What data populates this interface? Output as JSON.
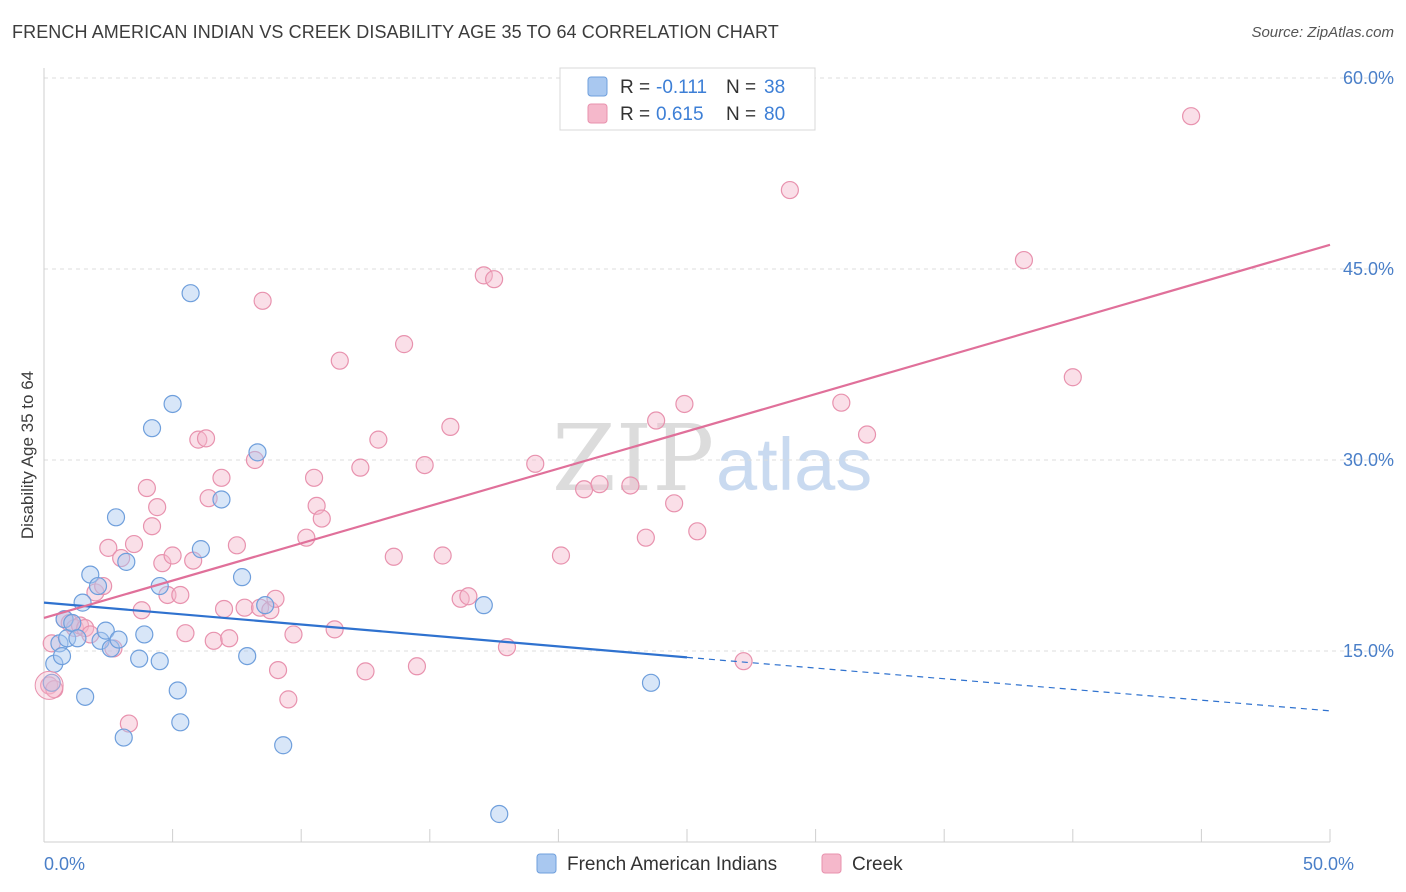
{
  "title": "FRENCH AMERICAN INDIAN VS CREEK DISABILITY AGE 35 TO 64 CORRELATION CHART",
  "source": "Source: ZipAtlas.com",
  "watermark": {
    "zip": "ZIP",
    "atlas": "atlas"
  },
  "colors": {
    "blue_fill": "#a9c8f0",
    "blue_stroke": "#6f9fdc",
    "blue_line": "#2f72cf",
    "pink_fill": "#f5b8cb",
    "pink_stroke": "#e892ae",
    "pink_line": "#e0709a",
    "tick": "#4a7fc8",
    "grid": "#dddddd"
  },
  "legend_top": {
    "rows": [
      {
        "r_label": "R =",
        "r_value": "-0.111",
        "n_label": "N =",
        "n_value": "38"
      },
      {
        "r_label": "R =",
        "r_value": "0.615",
        "n_label": "N =",
        "n_value": "80"
      }
    ]
  },
  "legend_bottom": [
    "French American Indians",
    "Creek"
  ],
  "chart_data": {
    "type": "scatter",
    "xlabel": "",
    "ylabel": "Disability Age 35 to 64",
    "xlim": [
      0,
      50
    ],
    "ylim": [
      0,
      60
    ],
    "x_tick_labels": [
      {
        "value": 0,
        "label": "0.0%"
      },
      {
        "value": 50,
        "label": "50.0%"
      }
    ],
    "y_tick_labels": [
      {
        "value": 15,
        "label": "15.0%"
      },
      {
        "value": 30,
        "label": "30.0%"
      },
      {
        "value": 45,
        "label": "45.0%"
      },
      {
        "value": 60,
        "label": "60.0%"
      }
    ],
    "series": [
      {
        "name": "French American Indians",
        "r": -0.111,
        "n": 38,
        "trend": {
          "x0": 0,
          "y0": 18.8,
          "x1": 25,
          "y1": 14.5,
          "dash_to_x": 50,
          "dash_to_y": 10.3
        },
        "points": [
          [
            0.3,
            12.5
          ],
          [
            0.4,
            14.0
          ],
          [
            0.6,
            15.6
          ],
          [
            0.7,
            14.6
          ],
          [
            0.8,
            17.5
          ],
          [
            0.9,
            16.0
          ],
          [
            1.1,
            17.2
          ],
          [
            1.3,
            16.0
          ],
          [
            1.5,
            18.8
          ],
          [
            1.6,
            11.4
          ],
          [
            1.8,
            21.0
          ],
          [
            2.1,
            20.1
          ],
          [
            2.2,
            15.8
          ],
          [
            2.4,
            16.6
          ],
          [
            2.6,
            15.2
          ],
          [
            2.8,
            25.5
          ],
          [
            2.9,
            15.9
          ],
          [
            3.1,
            8.2
          ],
          [
            3.2,
            22.0
          ],
          [
            3.7,
            14.4
          ],
          [
            3.9,
            16.3
          ],
          [
            4.2,
            32.5
          ],
          [
            4.5,
            14.2
          ],
          [
            4.5,
            20.1
          ],
          [
            5.0,
            34.4
          ],
          [
            5.2,
            11.9
          ],
          [
            5.3,
            9.4
          ],
          [
            5.7,
            43.1
          ],
          [
            6.1,
            23.0
          ],
          [
            6.9,
            26.9
          ],
          [
            7.7,
            20.8
          ],
          [
            7.9,
            14.6
          ],
          [
            8.3,
            30.6
          ],
          [
            8.6,
            18.6
          ],
          [
            9.3,
            7.6
          ],
          [
            17.1,
            18.6
          ],
          [
            17.7,
            2.2
          ],
          [
            23.6,
            12.5
          ]
        ]
      },
      {
        "name": "Creek",
        "r": 0.615,
        "n": 80,
        "trend": {
          "x0": 0,
          "y0": 17.6,
          "x1": 50,
          "y1": 46.9
        },
        "points": [
          [
            0.2,
            12.3
          ],
          [
            0.3,
            15.6
          ],
          [
            0.4,
            12.0
          ],
          [
            0.8,
            17.5
          ],
          [
            1.0,
            17.2
          ],
          [
            1.2,
            16.8
          ],
          [
            1.4,
            17.0
          ],
          [
            1.6,
            16.8
          ],
          [
            1.8,
            16.3
          ],
          [
            2.0,
            19.6
          ],
          [
            2.3,
            20.1
          ],
          [
            2.5,
            23.1
          ],
          [
            2.7,
            15.2
          ],
          [
            3.0,
            22.3
          ],
          [
            3.3,
            9.3
          ],
          [
            3.5,
            23.4
          ],
          [
            3.8,
            18.2
          ],
          [
            4.0,
            27.8
          ],
          [
            4.2,
            24.8
          ],
          [
            4.4,
            26.3
          ],
          [
            4.6,
            21.9
          ],
          [
            4.8,
            19.4
          ],
          [
            5.0,
            22.5
          ],
          [
            5.3,
            19.4
          ],
          [
            5.5,
            16.4
          ],
          [
            5.8,
            22.1
          ],
          [
            6.0,
            31.6
          ],
          [
            6.3,
            31.7
          ],
          [
            6.4,
            27.0
          ],
          [
            6.6,
            15.8
          ],
          [
            6.9,
            28.6
          ],
          [
            7.0,
            18.3
          ],
          [
            7.2,
            16.0
          ],
          [
            7.5,
            23.3
          ],
          [
            7.8,
            18.4
          ],
          [
            8.2,
            30.0
          ],
          [
            8.4,
            18.4
          ],
          [
            8.5,
            42.5
          ],
          [
            8.8,
            18.2
          ],
          [
            9.0,
            19.1
          ],
          [
            9.1,
            13.5
          ],
          [
            9.5,
            11.2
          ],
          [
            9.7,
            16.3
          ],
          [
            10.2,
            23.9
          ],
          [
            10.5,
            28.6
          ],
          [
            10.6,
            26.4
          ],
          [
            10.8,
            25.4
          ],
          [
            11.3,
            16.7
          ],
          [
            11.5,
            37.8
          ],
          [
            12.3,
            29.4
          ],
          [
            12.5,
            13.4
          ],
          [
            13.0,
            31.6
          ],
          [
            13.6,
            22.4
          ],
          [
            14.0,
            39.1
          ],
          [
            14.5,
            13.8
          ],
          [
            14.8,
            29.6
          ],
          [
            15.5,
            22.5
          ],
          [
            15.8,
            32.6
          ],
          [
            16.2,
            19.1
          ],
          [
            16.5,
            19.3
          ],
          [
            17.1,
            44.5
          ],
          [
            17.5,
            44.2
          ],
          [
            18.0,
            15.3
          ],
          [
            19.1,
            29.7
          ],
          [
            20.1,
            22.5
          ],
          [
            21.0,
            27.7
          ],
          [
            21.6,
            28.1
          ],
          [
            22.8,
            28.0
          ],
          [
            23.4,
            23.9
          ],
          [
            23.8,
            33.1
          ],
          [
            24.5,
            26.6
          ],
          [
            24.9,
            34.4
          ],
          [
            25.4,
            24.4
          ],
          [
            27.2,
            14.2
          ],
          [
            29.0,
            51.2
          ],
          [
            31.0,
            34.5
          ],
          [
            32.0,
            32.0
          ],
          [
            38.1,
            45.7
          ],
          [
            40.0,
            36.5
          ],
          [
            44.6,
            57.0
          ]
        ]
      }
    ]
  }
}
